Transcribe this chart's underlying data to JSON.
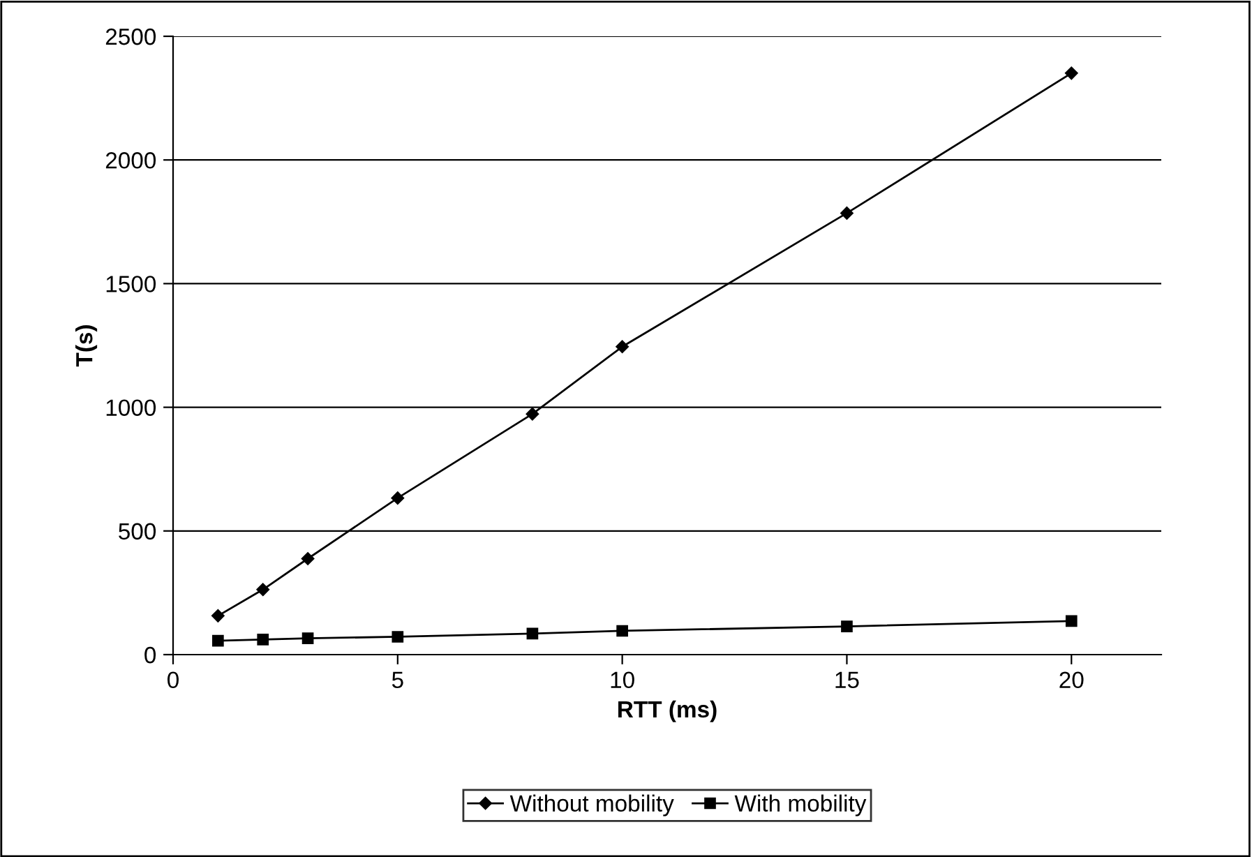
{
  "chart_data": {
    "type": "line",
    "xlabel": "RTT (ms)",
    "ylabel": "T(s)",
    "x": [
      1,
      2,
      3,
      5,
      8,
      10,
      15,
      20
    ],
    "series": [
      {
        "name": "Without mobility",
        "color": "#000000",
        "marker": "diamond",
        "values": [
          157,
          263,
          388,
          633,
          973,
          1245,
          1785,
          2351
        ]
      },
      {
        "name": "With mobility",
        "color": "#000000",
        "marker": "square",
        "values": [
          56,
          61,
          66,
          72,
          85,
          96,
          114,
          136
        ]
      }
    ],
    "xlim": [
      0,
      22
    ],
    "xticks": [
      0,
      5,
      10,
      15,
      20
    ],
    "ylim": [
      0,
      2500
    ],
    "yticks": [
      0,
      500,
      1000,
      1500,
      2000,
      2500
    ],
    "grid": "y",
    "legend": "bottom",
    "line_style": "solid"
  }
}
